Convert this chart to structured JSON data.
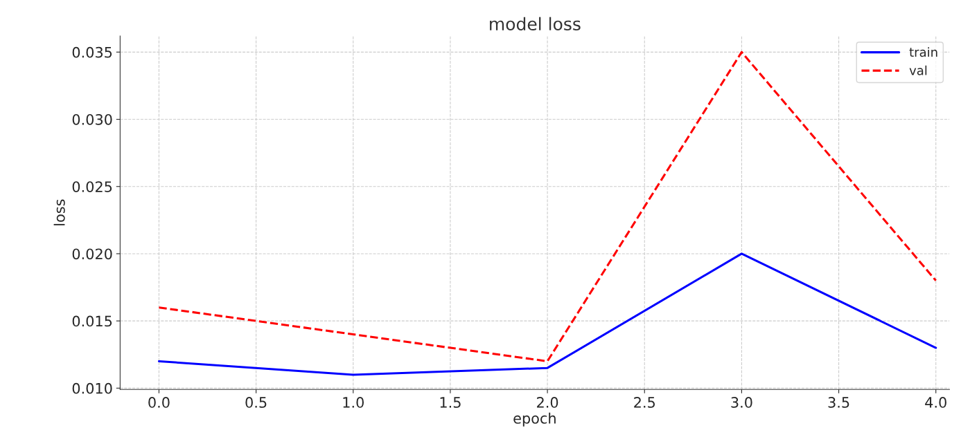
{
  "chart_data": {
    "type": "line",
    "title": "model loss",
    "xlabel": "epoch",
    "ylabel": "loss",
    "x": [
      0,
      1,
      2,
      3,
      4
    ],
    "series": [
      {
        "name": "train",
        "color": "#0000ff",
        "values": [
          0.012,
          0.011,
          0.0115,
          0.02,
          0.013
        ],
        "line_style": "solid"
      },
      {
        "name": "val",
        "color": "#ff0000",
        "values": [
          0.016,
          0.014,
          0.012,
          0.035,
          0.018
        ],
        "line_style": "dashed"
      }
    ],
    "xlim": [
      -0.2,
      4.07
    ],
    "xticks": [
      {
        "value": 0,
        "label": "0.0"
      },
      0.5,
      {
        "value": 1,
        "label": "1.0"
      },
      1.5,
      {
        "value": 2,
        "label": "2.0"
      },
      2.5,
      {
        "value": 3,
        "label": "3.0"
      },
      3.5,
      {
        "value": 4,
        "label": "4.0"
      }
    ],
    "ylim": [
      0.0099,
      0.0362
    ],
    "yticks": [
      {
        "value": 0.01,
        "label": "0.010"
      },
      0.015,
      {
        "value": 0.02,
        "label": "0.020"
      },
      0.025,
      {
        "value": 0.03,
        "label": "0.030"
      },
      0.035
    ],
    "grid": true,
    "legend": "top right",
    "marker": "none"
  }
}
